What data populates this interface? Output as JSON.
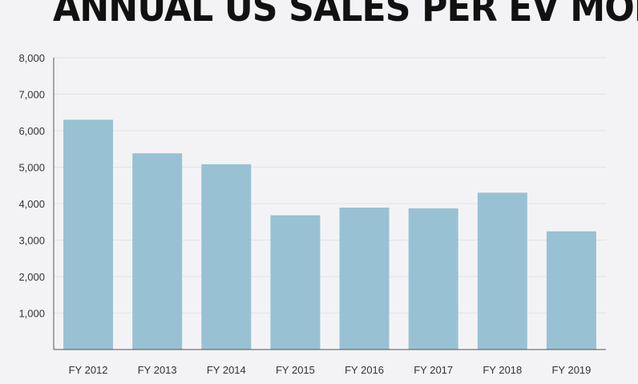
{
  "chart_data": {
    "type": "bar",
    "title": "ANNUAL US SALES PER EV MODEL",
    "xlabel": "",
    "ylabel": "",
    "categories": [
      "FY 2012",
      "FY 2013",
      "FY 2014",
      "FY 2015",
      "FY 2016",
      "FY 2017",
      "FY 2018",
      "FY 2019"
    ],
    "values": [
      6300,
      5380,
      5080,
      3680,
      3890,
      3870,
      4300,
      3240
    ],
    "ylim": [
      0,
      8000
    ],
    "yticks": [
      1000,
      2000,
      3000,
      4000,
      5000,
      6000,
      7000,
      8000
    ],
    "ytick_labels": [
      "1,000",
      "2,000",
      "3,000",
      "4,000",
      "5,000",
      "6,000",
      "7,000",
      "8,000"
    ],
    "grid": true,
    "legend": "none",
    "bar_color": "#98c2d3",
    "grid_color": "#e2e2ea",
    "axis_color": "#555555",
    "background": "#f3f3f6"
  }
}
